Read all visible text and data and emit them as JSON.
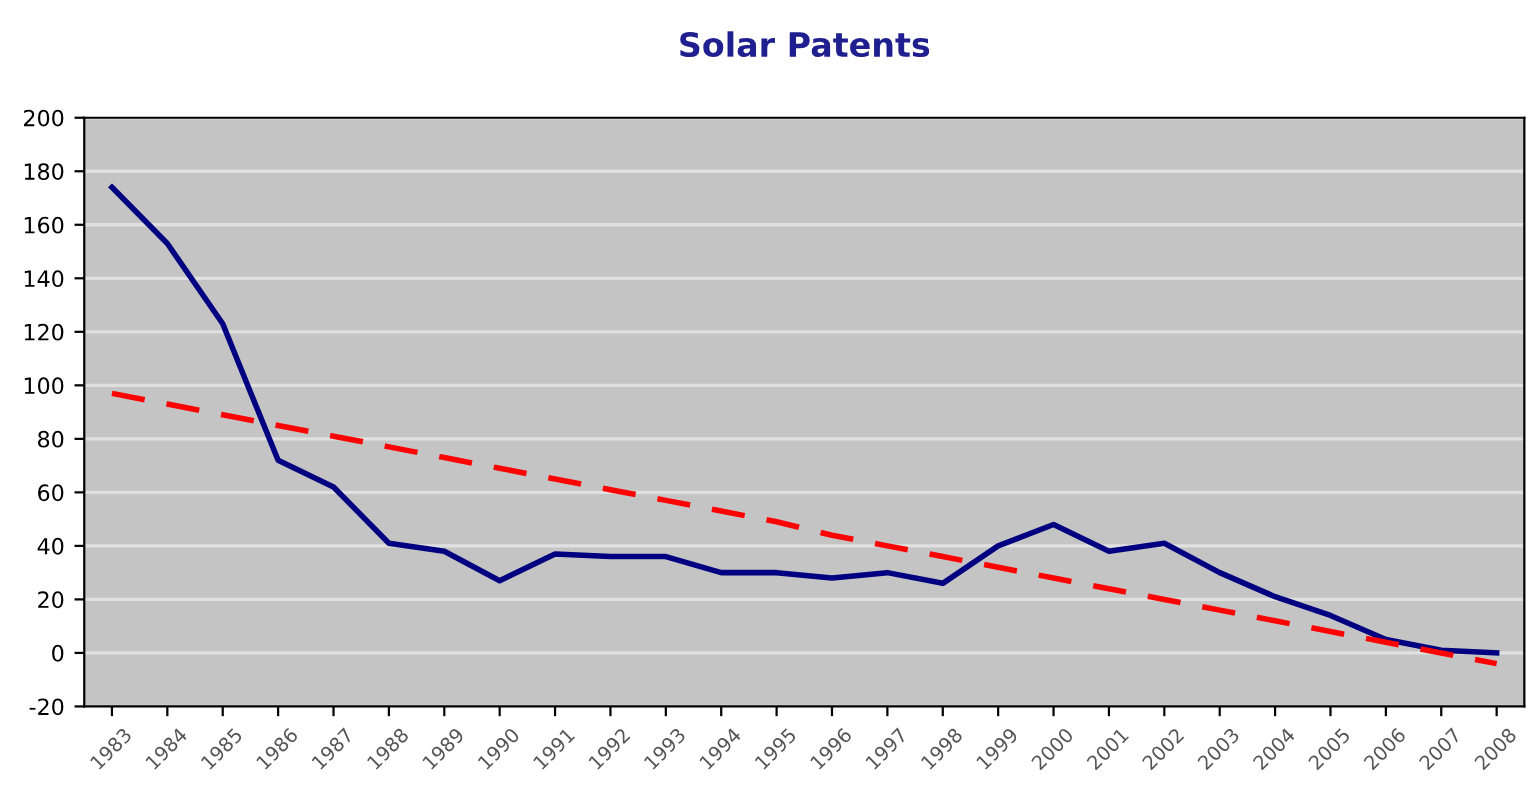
{
  "chart_data": {
    "type": "line",
    "title": "Solar Patents",
    "categories": [
      "1983",
      "1984",
      "1985",
      "1986",
      "1987",
      "1988",
      "1989",
      "1990",
      "1991",
      "1992",
      "1993",
      "1994",
      "1995",
      "1996",
      "1997",
      "1998",
      "1999",
      "2000",
      "2001",
      "2002",
      "2003",
      "2004",
      "2005",
      "2006",
      "2007",
      "2008"
    ],
    "series": [
      {
        "color": "#000080",
        "line_style": "solid",
        "values": [
          174,
          153,
          123,
          72,
          62,
          41,
          38,
          27,
          37,
          36,
          36,
          30,
          30,
          28,
          30,
          26,
          40,
          48,
          38,
          41,
          30,
          21,
          14,
          5,
          1,
          0
        ]
      },
      {
        "color": "#ff0000",
        "line_style": "dashed",
        "values": [
          97,
          93,
          89,
          85,
          81,
          77,
          73,
          69,
          65,
          61,
          57,
          53,
          49,
          44,
          40,
          36,
          32,
          28,
          24,
          20,
          16,
          12,
          8,
          4,
          0,
          -4
        ]
      }
    ],
    "ylim": [
      -20,
      200
    ],
    "yticks": [
      -20,
      0,
      20,
      40,
      60,
      80,
      100,
      120,
      140,
      160,
      180,
      200
    ],
    "grid": "y",
    "marker": "none",
    "legend": false
  }
}
